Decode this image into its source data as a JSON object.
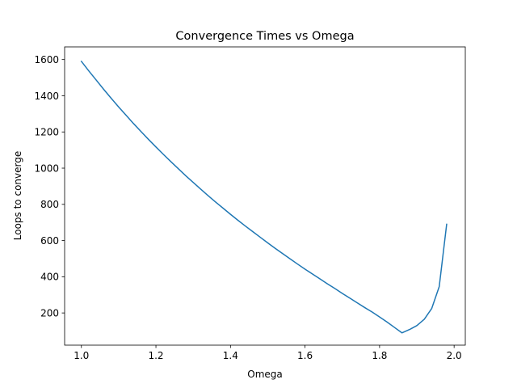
{
  "chart_data": {
    "type": "line",
    "title": "Convergence Times vs Omega",
    "xlabel": "Omega",
    "ylabel": "Loops to converge",
    "xlim": [
      0.955,
      2.03
    ],
    "ylim": [
      22,
      1670
    ],
    "x_ticks": [
      1.0,
      1.2,
      1.4,
      1.6,
      1.8,
      2.0
    ],
    "x_tick_labels": [
      "1.0",
      "1.2",
      "1.4",
      "1.6",
      "1.8",
      "2.0"
    ],
    "y_ticks": [
      200,
      400,
      600,
      800,
      1000,
      1200,
      1400,
      1600
    ],
    "y_tick_labels": [
      "200",
      "400",
      "600",
      "800",
      "1000",
      "1200",
      "1400",
      "1600"
    ],
    "grid": false,
    "legend": false,
    "series": [
      {
        "color": "#1f77b4",
        "x": [
          1.0,
          1.02,
          1.04,
          1.06,
          1.08,
          1.1,
          1.12,
          1.14,
          1.16,
          1.18,
          1.2,
          1.22,
          1.24,
          1.26,
          1.28,
          1.3,
          1.32,
          1.34,
          1.36,
          1.38,
          1.4,
          1.42,
          1.44,
          1.46,
          1.48,
          1.5,
          1.52,
          1.54,
          1.56,
          1.58,
          1.6,
          1.62,
          1.64,
          1.66,
          1.68,
          1.7,
          1.72,
          1.74,
          1.76,
          1.78,
          1.8,
          1.82,
          1.84,
          1.86,
          1.88,
          1.9,
          1.92,
          1.94,
          1.96,
          1.98
        ],
        "y": [
          1590,
          1537,
          1486,
          1435,
          1386,
          1338,
          1292,
          1246,
          1202,
          1159,
          1117,
          1076,
          1036,
          997,
          958,
          921,
          884,
          848,
          813,
          779,
          745,
          712,
          680,
          649,
          618,
          587,
          557,
          528,
          499,
          470,
          442,
          415,
          388,
          361,
          335,
          308,
          282,
          256,
          230,
          205,
          178,
          150,
          120,
          90,
          108,
          130,
          165,
          225,
          345,
          690
        ]
      }
    ]
  }
}
